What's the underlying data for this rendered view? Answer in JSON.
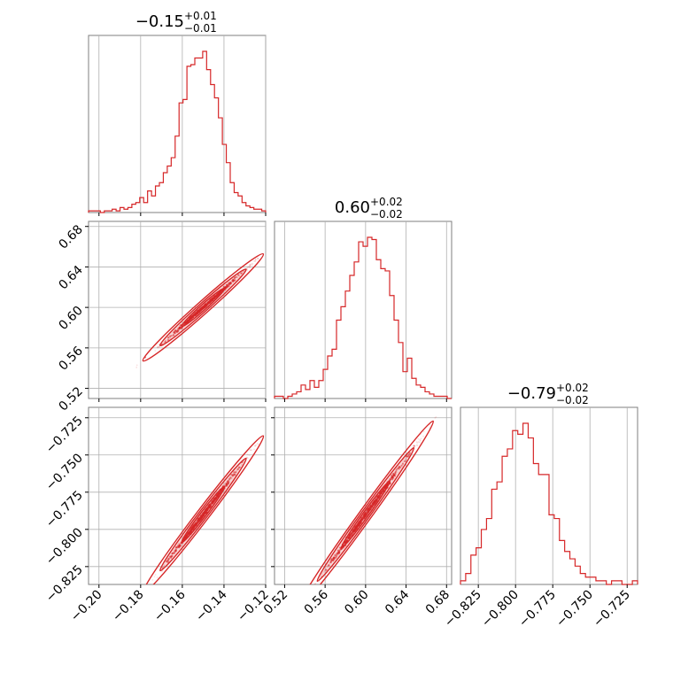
{
  "chart_data": {
    "type": "corner",
    "color": "#d62728",
    "parameters": [
      {
        "index": 0,
        "title": {
          "median": "−0.15",
          "plus": "+0.01",
          "minus": "−0.01"
        },
        "range": [
          -0.205,
          -0.12
        ],
        "ticks": [
          -0.2,
          -0.18,
          -0.16,
          -0.14,
          -0.12
        ],
        "tick_labels": [
          "−0.20",
          "−0.18",
          "−0.16",
          "−0.14",
          "−0.12"
        ]
      },
      {
        "index": 1,
        "title": {
          "median": "0.60",
          "plus": "+0.02",
          "minus": "−0.02"
        },
        "range": [
          0.51,
          0.685
        ],
        "ticks": [
          0.52,
          0.56,
          0.6,
          0.64,
          0.68
        ],
        "tick_labels": [
          "0.52",
          "0.56",
          "0.60",
          "0.64",
          "0.68"
        ]
      },
      {
        "index": 2,
        "title": {
          "median": "−0.79",
          "plus": "+0.02",
          "minus": "−0.02"
        },
        "range": [
          -0.837,
          -0.718
        ],
        "ticks": [
          -0.825,
          -0.8,
          -0.775,
          -0.75,
          -0.725
        ],
        "tick_labels": [
          "−0.825",
          "−0.800",
          "−0.775",
          "−0.750",
          "−0.725"
        ]
      }
    ],
    "histograms": [
      {
        "param": 0,
        "bin_edges_range": [
          -0.205,
          -0.12
        ],
        "counts": [
          1,
          1,
          1,
          0,
          1,
          1,
          2,
          1,
          3,
          2,
          3,
          5,
          6,
          9,
          6,
          13,
          10,
          16,
          18,
          24,
          28,
          33,
          46,
          66,
          68,
          88,
          89,
          93,
          93,
          97,
          86,
          77,
          69,
          57,
          41,
          30,
          18,
          12,
          10,
          6,
          4,
          3,
          2,
          2,
          1
        ]
      },
      {
        "param": 1,
        "bin_edges_range": [
          0.51,
          0.685
        ],
        "counts": [
          1,
          1,
          0,
          1,
          2,
          3,
          6,
          4,
          8,
          5,
          8,
          13,
          19,
          22,
          35,
          41,
          48,
          55,
          61,
          70,
          68,
          72,
          71,
          62,
          58,
          57,
          46,
          35,
          25,
          12,
          18,
          9,
          6,
          5,
          3,
          2,
          1,
          1,
          1,
          0
        ]
      },
      {
        "param": 2,
        "bin_edges_range": [
          -0.837,
          -0.718
        ],
        "counts": [
          1,
          3,
          8,
          10,
          15,
          18,
          26,
          28,
          35,
          37,
          42,
          41,
          44,
          40,
          33,
          30,
          30,
          19,
          18,
          12,
          9,
          7,
          5,
          3,
          2,
          2,
          1,
          1,
          0,
          1,
          1,
          0,
          0,
          1
        ]
      }
    ],
    "scatter_2d": [
      {
        "x_param": 0,
        "y_param": 1,
        "relation": "y ≈ 0.60 + 1.83·(x + 0.15)",
        "x_extent": [
          -0.19,
          -0.123
        ]
      },
      {
        "x_param": 0,
        "y_param": 2,
        "relation": "y ≈ −0.79 + 1.83·(x + 0.15)",
        "x_extent": [
          -0.19,
          -0.123
        ]
      },
      {
        "x_param": 1,
        "y_param": 2,
        "relation": "y ≈ −0.79 + 0.94·(x − 0.60)",
        "x_extent": [
          0.52,
          0.675
        ]
      }
    ],
    "grid": true
  }
}
